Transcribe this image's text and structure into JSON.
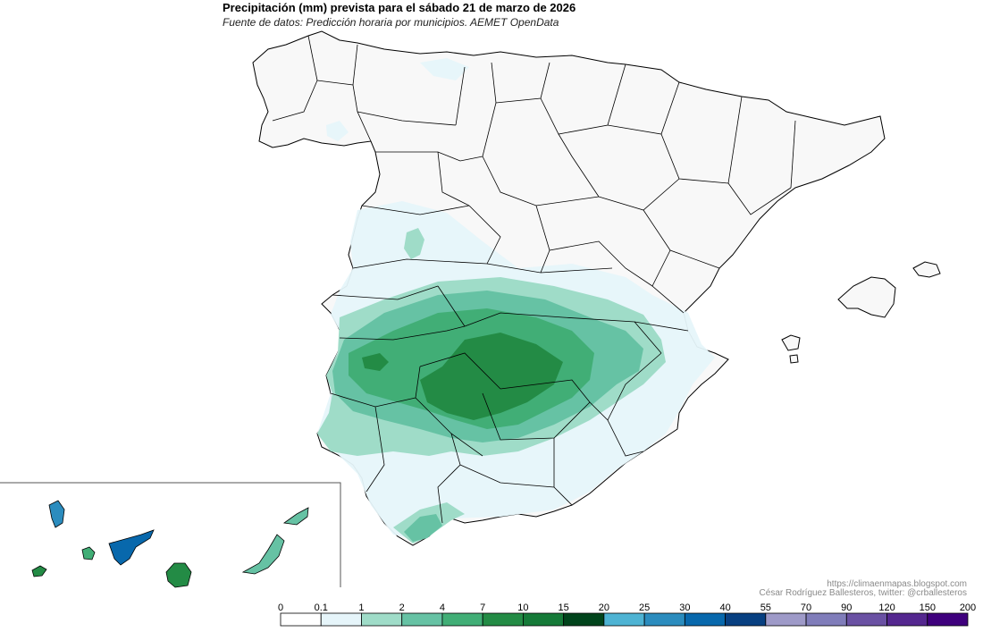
{
  "header": {
    "title": "Precipitación (mm) prevista para el sábado 21 de marzo de 2026",
    "subtitle": "Fuente de datos: Predicción horaria por municipios. AEMET OpenData"
  },
  "credits": {
    "url": "https://climaenmapas.blogspot.com",
    "author": "César Rodríguez Ballesteros, twitter: @crballesteros"
  },
  "colors": {
    "background": "#ffffff",
    "land": "#f8f8f8",
    "border": "#000000",
    "inset_frame": "#555555"
  },
  "legend": {
    "ticks": [
      "0",
      "0.1",
      "1",
      "2",
      "4",
      "7",
      "10",
      "15",
      "20",
      "25",
      "30",
      "40",
      "55",
      "70",
      "90",
      "120",
      "150",
      "200"
    ],
    "colors": [
      "#ffffff",
      "#e6f5fa",
      "#9fdcc8",
      "#66c2a4",
      "#41ae76",
      "#238b45",
      "#157a38",
      "#00441b",
      "#4eb3d3",
      "#2b8cbe",
      "#0868ac",
      "#084081",
      "#9e9ac8",
      "#807dba",
      "#6a51a3",
      "#54278f",
      "#3f007d"
    ]
  }
}
